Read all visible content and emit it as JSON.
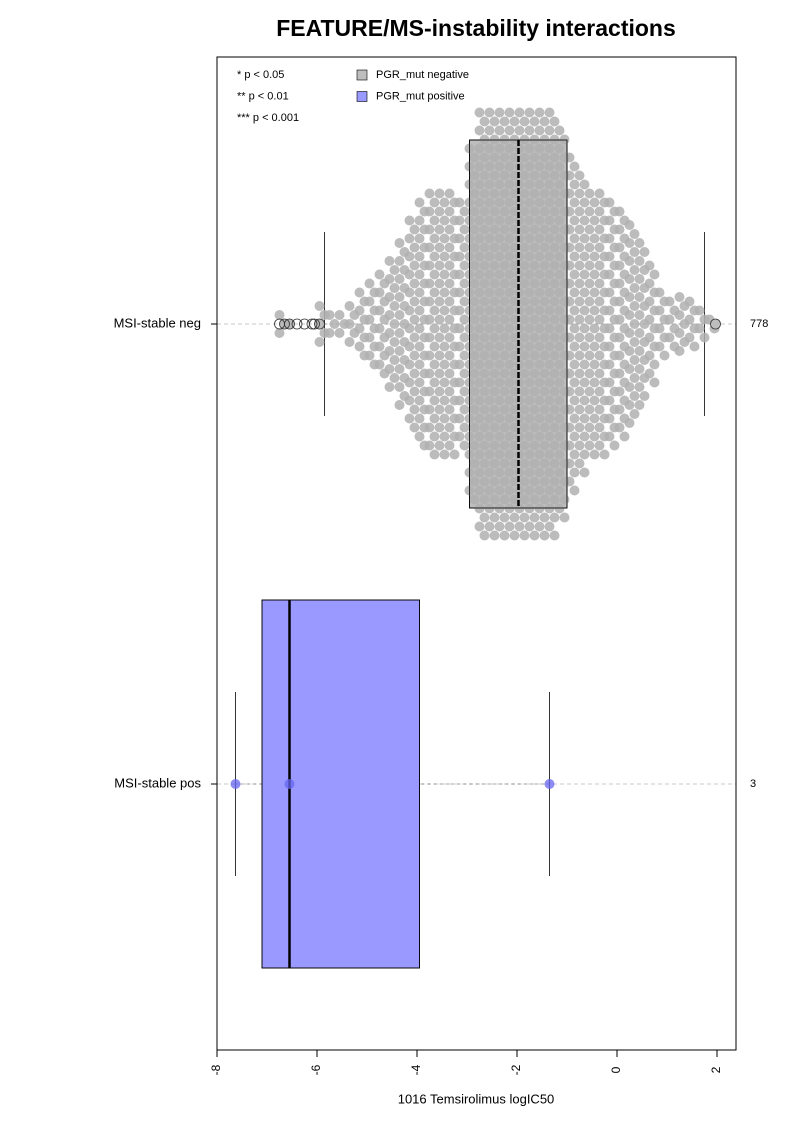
{
  "chart_data": {
    "type": "box",
    "title": "FEATURE/MS-instability interactions",
    "x_label": "1016 Temsirolimus logIC50",
    "categories": [
      "MSI-stable neg",
      "MSI-stable pos"
    ],
    "xlim": [
      -8,
      2.38
    ],
    "xticks": [
      -8,
      -6,
      -4,
      -2,
      0,
      2
    ],
    "notes": [
      "* p < 0.05",
      "** p < 0.01",
      "*** p < 0.001"
    ],
    "series": [
      {
        "name": "PGR_mut negative",
        "color": "#bebebe",
        "whisker_low": -5.85,
        "q1": -2.95,
        "median": -1.97,
        "q3": -1.0,
        "whisker_high": 1.75,
        "outliers": [
          -6.75,
          -6.65,
          -6.55,
          -6.4,
          -6.25,
          -6.1,
          -6.05,
          -5.95,
          1.97
        ],
        "n": 778,
        "swarm_bins": [
          -6.8,
          -6.6,
          -6.4,
          -6.2,
          -6.0,
          -5.8,
          -5.6,
          -5.4,
          -5.2,
          -5.0,
          -4.8,
          -4.6,
          -4.4,
          -4.2,
          -4.0,
          -3.8,
          -3.6,
          -3.4,
          -3.2,
          -3.0,
          -2.8,
          -2.6,
          -2.4,
          -2.2,
          -2.0,
          -1.8,
          -1.6,
          -1.4,
          -1.2,
          -1.0,
          -0.8,
          -0.6,
          -0.4,
          -0.2,
          0.0,
          0.2,
          0.4,
          0.6,
          0.8,
          1.0,
          1.2,
          1.4,
          1.6,
          1.8,
          2.0
        ],
        "swarm_counts": [
          3,
          1,
          0,
          0,
          5,
          3,
          3,
          5,
          8,
          10,
          12,
          15,
          19,
          24,
          28,
          30,
          30,
          30,
          28,
          40,
          48,
          48,
          48,
          48,
          48,
          48,
          48,
          48,
          44,
          38,
          34,
          30,
          30,
          28,
          26,
          23,
          19,
          14,
          8,
          6,
          7,
          6,
          4,
          2
        ]
      },
      {
        "name": "PGR_mut positive",
        "color": "#9999ff",
        "whisker_low": -7.63,
        "q1": -7.1,
        "median": -6.55,
        "q3": -3.95,
        "whisker_high": -1.35,
        "points": [
          -7.63,
          -6.55,
          -1.35
        ],
        "n": 3
      }
    ]
  }
}
